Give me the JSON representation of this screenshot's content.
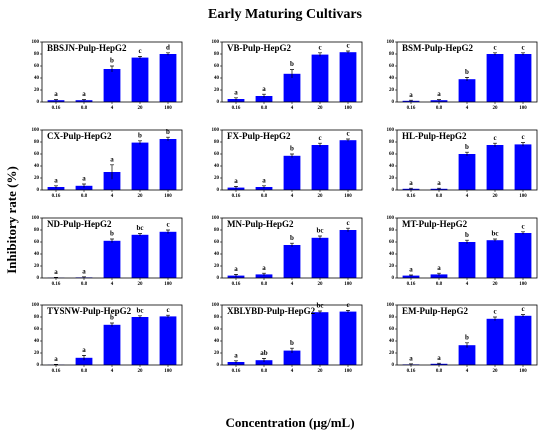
{
  "figure": {
    "title": "Early Maturing Cultivars",
    "y_label": "Inhibitory rate (%)",
    "x_label": "Concentration (μg/mL)"
  },
  "chart_data": [
    {
      "type": "bar",
      "title": "BBSJN-Pulp-HepG2",
      "categories": [
        "0.16",
        "0.8",
        "4",
        "20",
        "100"
      ],
      "values": [
        3,
        3,
        55,
        74,
        80
      ],
      "errors": [
        1,
        1,
        5,
        2,
        2
      ],
      "annotations": [
        "a",
        "a",
        "b",
        "c",
        "d"
      ],
      "color": "#0000ff",
      "ylim": [
        0,
        100
      ],
      "yticks": [
        0,
        20,
        40,
        60,
        80,
        100
      ]
    },
    {
      "type": "bar",
      "title": "VB-Pulp-HepG2",
      "categories": [
        "0.16",
        "0.8",
        "4",
        "20",
        "100"
      ],
      "values": [
        5,
        10,
        47,
        79,
        83
      ],
      "errors": [
        2,
        3,
        7,
        3,
        2
      ],
      "annotations": [
        "a",
        "a",
        "b",
        "c",
        "c"
      ],
      "color": "#0000ff",
      "ylim": [
        0,
        100
      ],
      "yticks": [
        0,
        20,
        40,
        60,
        80,
        100
      ]
    },
    {
      "type": "bar",
      "title": "BSM-Pulp-HepG2",
      "categories": [
        "0.16",
        "0.8",
        "4",
        "20",
        "100"
      ],
      "values": [
        2,
        3,
        38,
        80,
        80
      ],
      "errors": [
        1,
        1,
        3,
        2,
        2
      ],
      "annotations": [
        "a",
        "a",
        "b",
        "c",
        "c"
      ],
      "color": "#0000ff",
      "ylim": [
        0,
        100
      ],
      "yticks": [
        0,
        20,
        40,
        60,
        80,
        100
      ]
    },
    {
      "type": "bar",
      "title": "CX-Pulp-HepG2",
      "categories": [
        "0.16",
        "0.8",
        "4",
        "20",
        "100"
      ],
      "values": [
        5,
        7,
        30,
        79,
        85
      ],
      "errors": [
        2,
        3,
        12,
        3,
        3
      ],
      "annotations": [
        "a",
        "a",
        "a",
        "b",
        "b"
      ],
      "color": "#0000ff",
      "ylim": [
        0,
        100
      ],
      "yticks": [
        0,
        20,
        40,
        60,
        80,
        100
      ]
    },
    {
      "type": "bar",
      "title": "FX-Pulp-HepG2",
      "categories": [
        "0.16",
        "0.8",
        "4",
        "20",
        "100"
      ],
      "values": [
        4,
        5,
        57,
        75,
        83
      ],
      "errors": [
        2,
        2,
        3,
        3,
        2
      ],
      "annotations": [
        "a",
        "a",
        "b",
        "c",
        "c"
      ],
      "color": "#0000ff",
      "ylim": [
        0,
        100
      ],
      "yticks": [
        0,
        20,
        40,
        60,
        80,
        100
      ]
    },
    {
      "type": "bar",
      "title": "HL-Pulp-HepG2",
      "categories": [
        "0.16",
        "0.8",
        "4",
        "20",
        "100"
      ],
      "values": [
        2,
        2,
        60,
        75,
        76
      ],
      "errors": [
        1,
        1,
        3,
        3,
        3
      ],
      "annotations": [
        "a",
        "a",
        "b",
        "c",
        "c"
      ],
      "color": "#0000ff",
      "ylim": [
        0,
        100
      ],
      "yticks": [
        0,
        20,
        40,
        60,
        80,
        100
      ]
    },
    {
      "type": "bar",
      "title": "ND-Pulp-HepG2",
      "categories": [
        "0.16",
        "0.8",
        "4",
        "20",
        "100"
      ],
      "values": [
        0.5,
        1,
        62,
        72,
        77
      ],
      "errors": [
        0.5,
        1,
        3,
        2,
        3
      ],
      "annotations": [
        "a",
        "a",
        "b",
        "bc",
        "c"
      ],
      "color": "#0000ff",
      "ylim": [
        0,
        100
      ],
      "yticks": [
        0,
        20,
        40,
        60,
        80,
        100
      ]
    },
    {
      "type": "bar",
      "title": "MN-Pulp-HepG2",
      "categories": [
        "0.16",
        "0.8",
        "4",
        "20",
        "100"
      ],
      "values": [
        4,
        6,
        55,
        67,
        80
      ],
      "errors": [
        2,
        2,
        3,
        3,
        3
      ],
      "annotations": [
        "a",
        "a",
        "b",
        "bc",
        "c"
      ],
      "color": "#0000ff",
      "ylim": [
        0,
        100
      ],
      "yticks": [
        0,
        20,
        40,
        60,
        80,
        100
      ]
    },
    {
      "type": "bar",
      "title": "MT-Pulp-HepG2",
      "categories": [
        "0.16",
        "0.8",
        "4",
        "20",
        "100"
      ],
      "values": [
        4,
        6,
        60,
        63,
        75
      ],
      "errors": [
        1,
        2,
        3,
        2,
        2
      ],
      "annotations": [
        "a",
        "a",
        "b",
        "bc",
        "c"
      ],
      "color": "#0000ff",
      "ylim": [
        0,
        100
      ],
      "yticks": [
        0,
        20,
        40,
        60,
        80,
        100
      ]
    },
    {
      "type": "bar",
      "title": "TYSNW-Pulp-HepG2",
      "categories": [
        "0.16",
        "0.8",
        "4",
        "20",
        "100"
      ],
      "values": [
        0.5,
        12,
        67,
        80,
        81
      ],
      "errors": [
        0.5,
        4,
        3,
        2,
        2
      ],
      "annotations": [
        "a",
        "a",
        "b",
        "bc",
        "c"
      ],
      "color": "#0000ff",
      "ylim": [
        0,
        100
      ],
      "yticks": [
        0,
        20,
        40,
        60,
        80,
        100
      ]
    },
    {
      "type": "bar",
      "title": "XBLYBD-Pulp-HepG2",
      "categories": [
        "0.16",
        "0.8",
        "4",
        "20",
        "100"
      ],
      "values": [
        5,
        8,
        24,
        88,
        89
      ],
      "errors": [
        2,
        3,
        4,
        2,
        2
      ],
      "annotations": [
        "a",
        "ab",
        "b",
        "bc",
        "c"
      ],
      "color": "#0000ff",
      "ylim": [
        0,
        100
      ],
      "yticks": [
        0,
        20,
        40,
        60,
        80,
        100
      ]
    },
    {
      "type": "bar",
      "title": "EM-Pulp-HepG2",
      "categories": [
        "0.16",
        "0.8",
        "4",
        "20",
        "100"
      ],
      "values": [
        1,
        2,
        33,
        77,
        82
      ],
      "errors": [
        1,
        1,
        4,
        3,
        2
      ],
      "annotations": [
        "a",
        "a",
        "b",
        "c",
        "c"
      ],
      "color": "#0000ff",
      "ylim": [
        0,
        100
      ],
      "yticks": [
        0,
        20,
        40,
        60,
        80,
        100
      ]
    }
  ]
}
